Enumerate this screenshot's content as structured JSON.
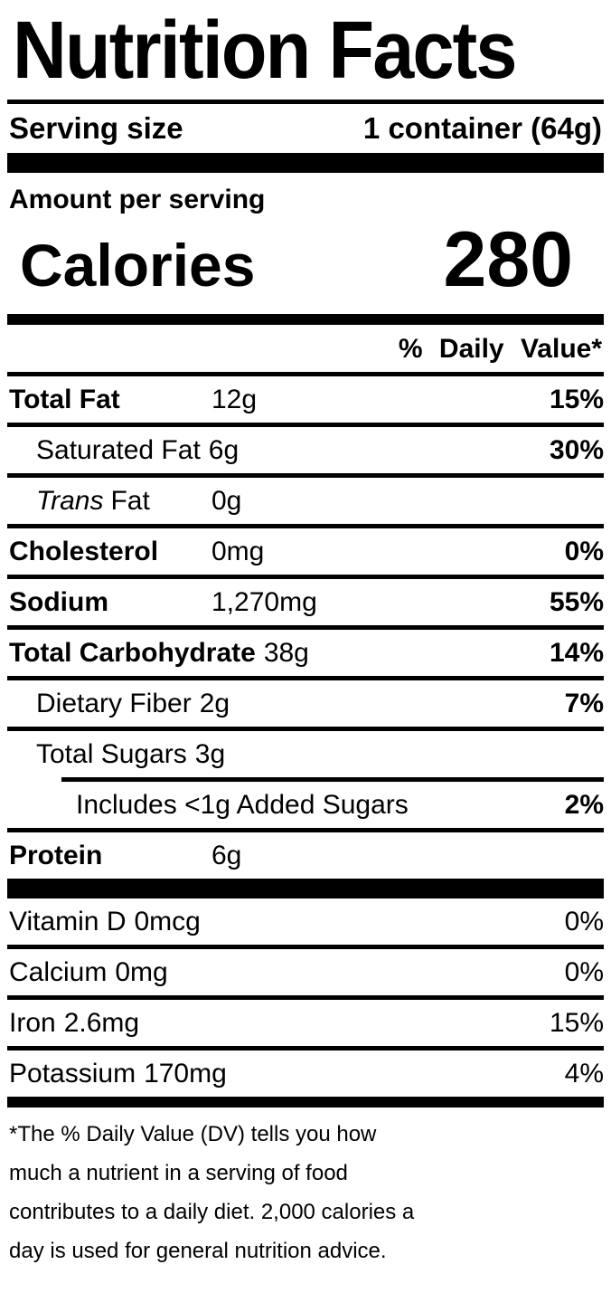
{
  "title": "Nutrition Facts",
  "serving": {
    "label": "Serving size",
    "value": "1 container (64g)"
  },
  "amount_per_serving_label": "Amount per serving",
  "calories": {
    "label": "Calories",
    "value": "280"
  },
  "daily_value_header": "% Daily Value*",
  "nutrients": [
    {
      "name": "Total Fat",
      "amount": "12g",
      "dv": "15%"
    },
    {
      "name": "Saturated Fat",
      "amount": "6g",
      "dv": "30%"
    },
    {
      "name_italic": "Trans",
      "name": "Fat",
      "amount": "0g",
      "dv": ""
    },
    {
      "name": "Cholesterol",
      "amount": "0mg",
      "dv": "0%"
    },
    {
      "name": "Sodium",
      "amount": "1,270mg",
      "dv": "55%"
    },
    {
      "name": "Total Carbohydrate",
      "amount": "38g",
      "dv": "14%"
    },
    {
      "name": "Dietary Fiber",
      "amount": "2g",
      "dv": "7%"
    },
    {
      "name": "Total Sugars",
      "amount": "3g",
      "dv": ""
    },
    {
      "name": "Includes <1g Added Sugars",
      "amount": "",
      "dv": "2%"
    },
    {
      "name": "Protein",
      "amount": "6g",
      "dv": ""
    }
  ],
  "vitamins": [
    {
      "name": "Vitamin D",
      "amount": "0mcg",
      "dv": "0%"
    },
    {
      "name": "Calcium",
      "amount": "0mg",
      "dv": "0%"
    },
    {
      "name": "Iron",
      "amount": "2.6mg",
      "dv": "15%"
    },
    {
      "name": "Potassium",
      "amount": "170mg",
      "dv": "4%"
    }
  ],
  "footnote_lines": [
    "*The % Daily Value (DV) tells you how",
    "much a nutrient in a serving of food",
    "contributes to a daily diet. 2,000 calories a",
    "day is used for general nutrition advice."
  ],
  "colors": {
    "text": "#000000",
    "background": "#ffffff"
  }
}
